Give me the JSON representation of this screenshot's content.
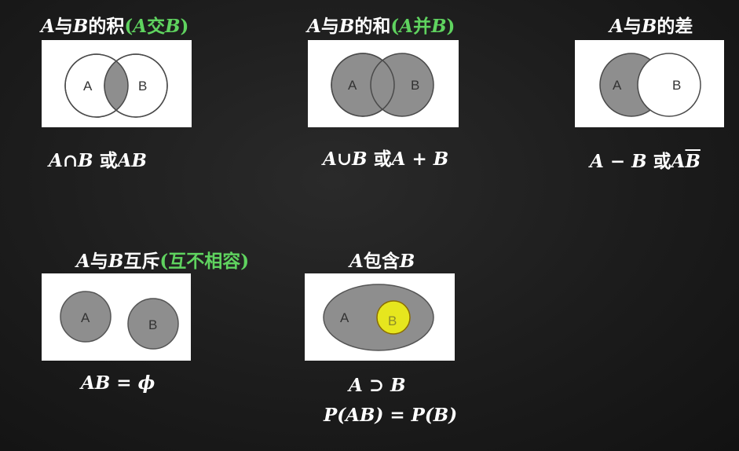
{
  "colors": {
    "background": "#1c1c1c",
    "heading_text": "#ffffff",
    "accent_green": "#5fd35f",
    "shaded_region": "#8e8e8e",
    "highlight_yellow": "#e6e61e",
    "panel_background": "#ffffff"
  },
  "sections": {
    "product": {
      "title_a": "A",
      "title_mid": "与",
      "title_b": "B",
      "title_rest": "的积",
      "paren_open": "(",
      "paren_a": "A",
      "paren_word": "交",
      "paren_b": "B",
      "paren_close": ")",
      "formula_a": "A",
      "formula_op": "∩",
      "formula_b": "B",
      "formula_or": " 或",
      "formula_ab": "AB",
      "circle_a_label": "A",
      "circle_b_label": "B"
    },
    "sum": {
      "title_a": "A",
      "title_mid": "与",
      "title_b": "B",
      "title_rest": "的和",
      "paren_open": "(",
      "paren_a": "A",
      "paren_word": "并",
      "paren_b": "B",
      "paren_close": ")",
      "formula_a": "A",
      "formula_op": "∪",
      "formula_b": "B",
      "formula_or": " 或",
      "formula_sum": "A + B",
      "circle_a_label": "A",
      "circle_b_label": "B"
    },
    "difference": {
      "title_a": "A",
      "title_mid": "与",
      "title_b": "B",
      "title_rest": "的差",
      "formula_lhs": "A − B",
      "formula_or": " 或",
      "formula_a": "A",
      "formula_bbar": "B",
      "circle_a_label": "A",
      "circle_b_label": "B"
    },
    "exclusive": {
      "title_a": "A",
      "title_mid": "与",
      "title_b": "B",
      "title_rest": "互斥",
      "paren_open": "(",
      "paren_word": "互不相容",
      "paren_close": ")",
      "formula": "AB = ϕ",
      "circle_a_label": "A",
      "circle_b_label": "B"
    },
    "contains": {
      "title_a": "A",
      "title_rest": "包含",
      "title_b": "B",
      "formula_1": "A ⊃ B",
      "formula_2": "P(AB) = P(B)",
      "outer_label": "A",
      "inner_label": "B"
    }
  }
}
